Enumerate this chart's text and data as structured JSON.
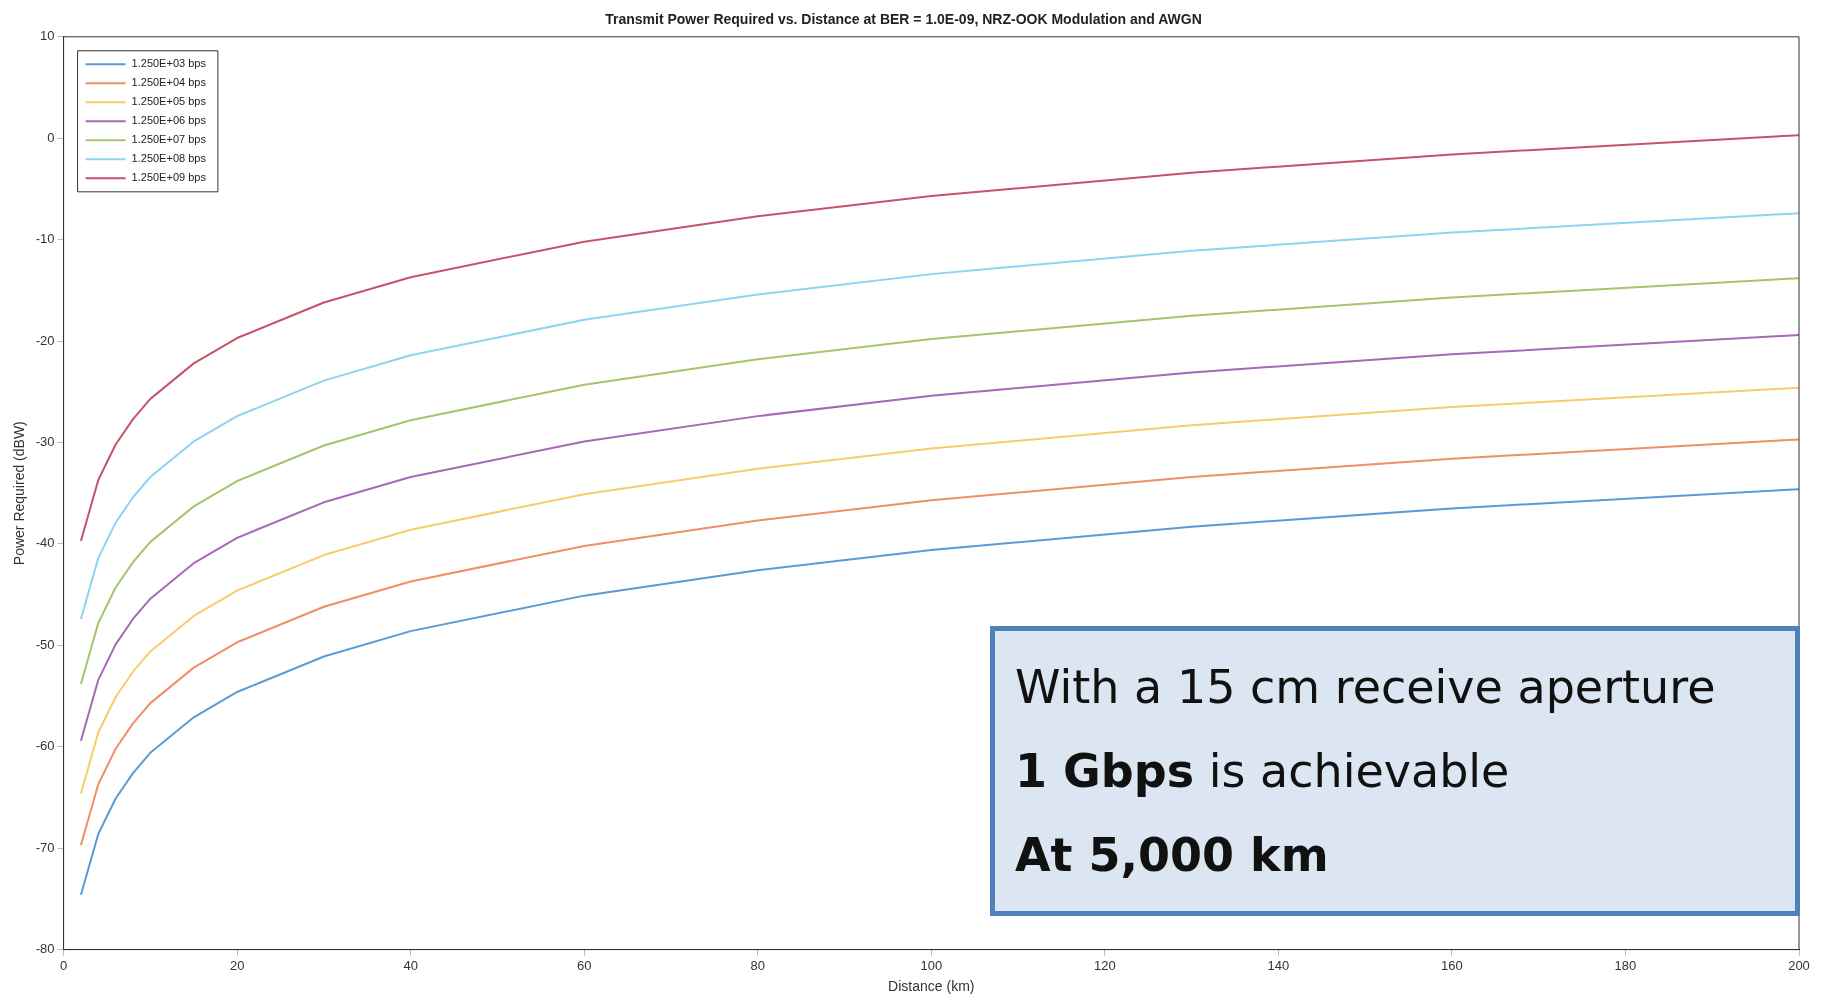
{
  "chart_data": {
    "type": "line",
    "title": "Transmit Power Required vs. Distance at BER = 1.0E-09, NRZ-OOK Modulation and AWGN",
    "xlabel": "Distance (km)",
    "ylabel": "Power Required (dBW)",
    "x": [
      2,
      4,
      6,
      8,
      10,
      15,
      20,
      30,
      40,
      60,
      80,
      100,
      130,
      160,
      200
    ],
    "series": [
      {
        "name": "1.250E+03 bps",
        "color": "#5b9bd5",
        "values": [
          -74.6,
          -68.6,
          -65.1,
          -62.6,
          -60.6,
          -57.1,
          -54.6,
          -51.1,
          -48.6,
          -45.1,
          -42.6,
          -40.6,
          -38.3,
          -36.5,
          -34.6
        ]
      },
      {
        "name": "1.250E+04 bps",
        "color": "#ef8f66",
        "values": [
          -69.7,
          -63.7,
          -60.2,
          -57.7,
          -55.7,
          -52.2,
          -49.7,
          -46.2,
          -43.7,
          -40.2,
          -37.7,
          -35.7,
          -33.4,
          -31.6,
          -29.7
        ]
      },
      {
        "name": "1.250E+05 bps",
        "color": "#f6cd6a",
        "values": [
          -64.6,
          -58.6,
          -55.1,
          -52.6,
          -50.6,
          -47.1,
          -44.6,
          -41.1,
          -38.6,
          -35.1,
          -32.6,
          -30.6,
          -28.3,
          -26.5,
          -24.6
        ]
      },
      {
        "name": "1.250E+06 bps",
        "color": "#a768b8",
        "values": [
          -59.4,
          -53.4,
          -49.9,
          -47.4,
          -45.4,
          -41.9,
          -39.4,
          -35.9,
          -33.4,
          -29.9,
          -27.4,
          -25.4,
          -23.1,
          -21.3,
          -19.4
        ]
      },
      {
        "name": "1.250E+07 bps",
        "color": "#a3c66c",
        "values": [
          -53.8,
          -47.8,
          -44.3,
          -41.8,
          -39.8,
          -36.3,
          -33.8,
          -30.3,
          -27.8,
          -24.3,
          -21.8,
          -19.8,
          -17.5,
          -15.7,
          -13.8
        ]
      },
      {
        "name": "1.250E+08 bps",
        "color": "#8dd3f2",
        "values": [
          -47.4,
          -41.4,
          -37.9,
          -35.4,
          -33.4,
          -29.9,
          -27.4,
          -23.9,
          -21.4,
          -17.9,
          -15.4,
          -13.4,
          -11.1,
          -9.3,
          -7.4
        ]
      },
      {
        "name": "1.250E+09 bps",
        "color": "#c65468",
        "values": [
          -39.7,
          -33.7,
          -30.2,
          -27.7,
          -25.7,
          -22.2,
          -19.7,
          -16.2,
          -13.7,
          -10.2,
          -7.7,
          -5.7,
          -3.4,
          -1.6,
          0.3
        ]
      }
    ],
    "xlim": [
      0,
      200
    ],
    "xticks": [
      0,
      20,
      40,
      60,
      80,
      100,
      120,
      140,
      160,
      180,
      200
    ],
    "ylim": [
      -80,
      10
    ],
    "yticks": [
      -80,
      -70,
      -60,
      -50,
      -40,
      -30,
      -20,
      -10,
      0,
      10
    ],
    "legend": "top left",
    "grid": false,
    "marker": "none",
    "line_style": "solid",
    "annotations": [
      "With a 15 cm receive aperture",
      "1 Gbps",
      "is achievable",
      "At 5,000 km"
    ]
  }
}
